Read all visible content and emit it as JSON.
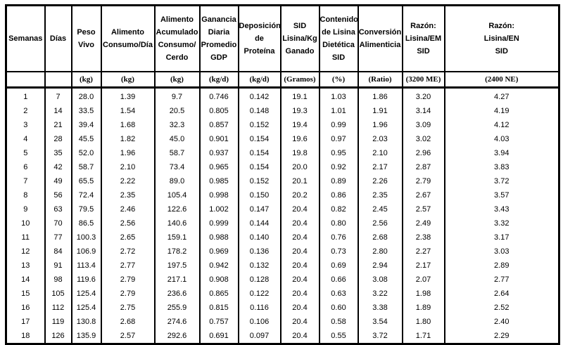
{
  "table": {
    "description": "Swine growth, feed intake and SID lysine requirement table (Spanish)",
    "columns": [
      {
        "id": "semanas",
        "label_lines": [
          "Semanas"
        ],
        "unit": "",
        "width": 55
      },
      {
        "id": "dias",
        "label_lines": [
          "Días"
        ],
        "unit": "",
        "width": 38
      },
      {
        "id": "peso-vivo",
        "label_lines": [
          "Peso",
          "Vivo"
        ],
        "unit": "(kg)",
        "width": 42
      },
      {
        "id": "alimento-consumo-dia",
        "label_lines": [
          "Alimento",
          "Consumo/Día"
        ],
        "unit": "(kg)",
        "width": 76
      },
      {
        "id": "alimento-acumulado",
        "label_lines": [
          "Alimento",
          "Acumulado",
          "Consumo/",
          "Cerdo"
        ],
        "unit": "(kg)",
        "width": 64
      },
      {
        "id": "ganancia-diaria-gdp",
        "label_lines": [
          "Ganancia",
          "Diaria",
          "Promedio",
          "GDP"
        ],
        "unit": "(kg/d)",
        "width": 55
      },
      {
        "id": "deposicion-proteina",
        "label_lines": [
          "Deposición",
          "de",
          "Proteína"
        ],
        "unit": "(kg/d)",
        "width": 60
      },
      {
        "id": "sid-lisina-kg-ganado",
        "label_lines": [
          "SID",
          "Lisina/Kg",
          "Ganado"
        ],
        "unit": "(Gramos)",
        "width": 55
      },
      {
        "id": "contenido-lisina-sid",
        "label_lines": [
          "Contenido",
          "de Lisina",
          "Dietética",
          "SID"
        ],
        "unit": "(%)",
        "width": 55
      },
      {
        "id": "conversion-alimenticia",
        "label_lines": [
          "Conversión",
          "Alimenticia"
        ],
        "unit": "(Ratio)",
        "width": 63
      },
      {
        "id": "razon-lisina-em-sid",
        "label_lines": [
          "Razón:",
          "Lisina/EM",
          "SID"
        ],
        "unit": "(3200 ME)",
        "width": 60
      },
      {
        "id": "razon-lisina-en-sid",
        "label_lines": [
          "Razón:",
          "Lisina/EN",
          "SID"
        ],
        "unit": "(2400 NE)",
        "width": 163
      }
    ],
    "rows": [
      [
        "1",
        "7",
        "28.0",
        "1.39",
        "9.7",
        "0.746",
        "0.142",
        "19.1",
        "1.03",
        "1.86",
        "3.20",
        "4.27"
      ],
      [
        "2",
        "14",
        "33.5",
        "1.54",
        "20.5",
        "0.805",
        "0.148",
        "19.3",
        "1.01",
        "1.91",
        "3.14",
        "4.19"
      ],
      [
        "3",
        "21",
        "39.4",
        "1.68",
        "32.3",
        "0.857",
        "0.152",
        "19.4",
        "0.99",
        "1.96",
        "3.09",
        "4.12"
      ],
      [
        "4",
        "28",
        "45.5",
        "1.82",
        "45.0",
        "0.901",
        "0.154",
        "19.6",
        "0.97",
        "2.03",
        "3.02",
        "4.03"
      ],
      [
        "5",
        "35",
        "52.0",
        "1.96",
        "58.7",
        "0.937",
        "0.154",
        "19.8",
        "0.95",
        "2.10",
        "2.96",
        "3.94"
      ],
      [
        "6",
        "42",
        "58.7",
        "2.10",
        "73.4",
        "0.965",
        "0.154",
        "20.0",
        "0.92",
        "2.17",
        "2.87",
        "3.83"
      ],
      [
        "7",
        "49",
        "65.5",
        "2.22",
        "89.0",
        "0.985",
        "0.152",
        "20.1",
        "0.89",
        "2.26",
        "2.79",
        "3.72"
      ],
      [
        "8",
        "56",
        "72.4",
        "2.35",
        "105.4",
        "0.998",
        "0.150",
        "20.2",
        "0.86",
        "2.35",
        "2.67",
        "3.57"
      ],
      [
        "9",
        "63",
        "79.5",
        "2.46",
        "122.6",
        "1.002",
        "0.147",
        "20.4",
        "0.82",
        "2.45",
        "2.57",
        "3.43"
      ],
      [
        "10",
        "70",
        "86.5",
        "2.56",
        "140.6",
        "0.999",
        "0.144",
        "20.4",
        "0.80",
        "2.56",
        "2.49",
        "3.32"
      ],
      [
        "11",
        "77",
        "100.3",
        "2.65",
        "159.1",
        "0.988",
        "0.140",
        "20.4",
        "0.76",
        "2.68",
        "2.38",
        "3.17"
      ],
      [
        "12",
        "84",
        "106.9",
        "2.72",
        "178.2",
        "0.969",
        "0.136",
        "20.4",
        "0.73",
        "2.80",
        "2.27",
        "3.03"
      ],
      [
        "13",
        "91",
        "113.4",
        "2.77",
        "197.5",
        "0.942",
        "0.132",
        "20.4",
        "0.69",
        "2.94",
        "2.17",
        "2.89"
      ],
      [
        "14",
        "98",
        "119.6",
        "2.79",
        "217.1",
        "0.908",
        "0.128",
        "20.4",
        "0.66",
        "3.08",
        "2.07",
        "2.77"
      ],
      [
        "15",
        "105",
        "125.4",
        "2.79",
        "236.6",
        "0.865",
        "0.122",
        "20.4",
        "0.63",
        "3.22",
        "1.98",
        "2.64"
      ],
      [
        "16",
        "112",
        "125.4",
        "2.75",
        "255.9",
        "0.815",
        "0.116",
        "20.4",
        "0.60",
        "3.38",
        "1.89",
        "2.52"
      ],
      [
        "17",
        "119",
        "130.8",
        "2.68",
        "274.6",
        "0.757",
        "0.106",
        "20.4",
        "0.58",
        "3.54",
        "1.80",
        "2.40"
      ],
      [
        "18",
        "126",
        "135.9",
        "2.57",
        "292.6",
        "0.691",
        "0.097",
        "20.4",
        "0.55",
        "3.72",
        "1.71",
        "2.29"
      ]
    ]
  }
}
